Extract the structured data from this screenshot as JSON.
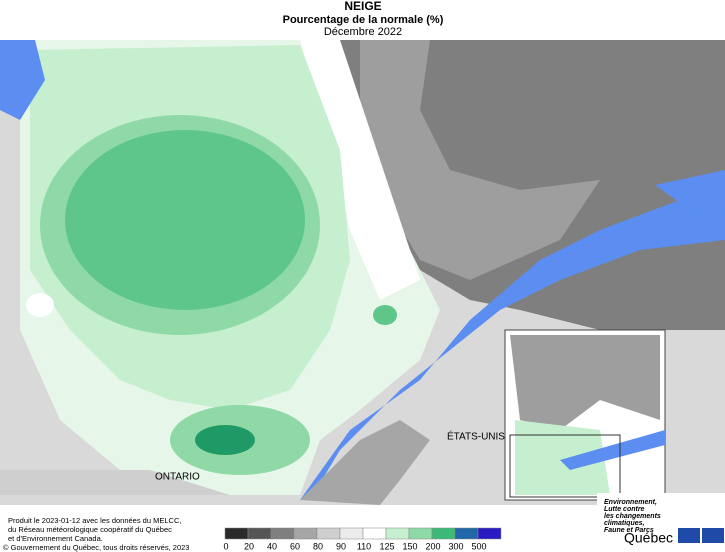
{
  "header": {
    "title": "NEIGE",
    "subtitle": "Pourcentage de la normale (%)",
    "period": "Décembre 2022"
  },
  "map": {
    "labels": [
      "ONTARIO",
      "ÉTATS-UNIS"
    ]
  },
  "legend": {
    "values": [
      0,
      20,
      40,
      60,
      80,
      90,
      110,
      125,
      150,
      200,
      300,
      500
    ],
    "colors": [
      "#2b2b2b",
      "#555555",
      "#7f7f7f",
      "#a6a6a6",
      "#cfcfcf",
      "#ececec",
      "#ffffff",
      "#c6efcf",
      "#8fd9a7",
      "#3cba77",
      "#2166a8",
      "#2a1ac2"
    ]
  },
  "credits": [
    "Produit le 2023-01-12 avec les données du MELCC,",
    "du Réseau météorologique coopératif du Québec",
    "et d'Environnement Canada.",
    "© Gouvernement du Québec, tous droits réservés, 2023"
  ],
  "logo": {
    "lines": [
      "Environnement,",
      "Lutte contre",
      "les changements",
      "climatiques,",
      "Faune et Parcs"
    ],
    "name": "Québec"
  }
}
